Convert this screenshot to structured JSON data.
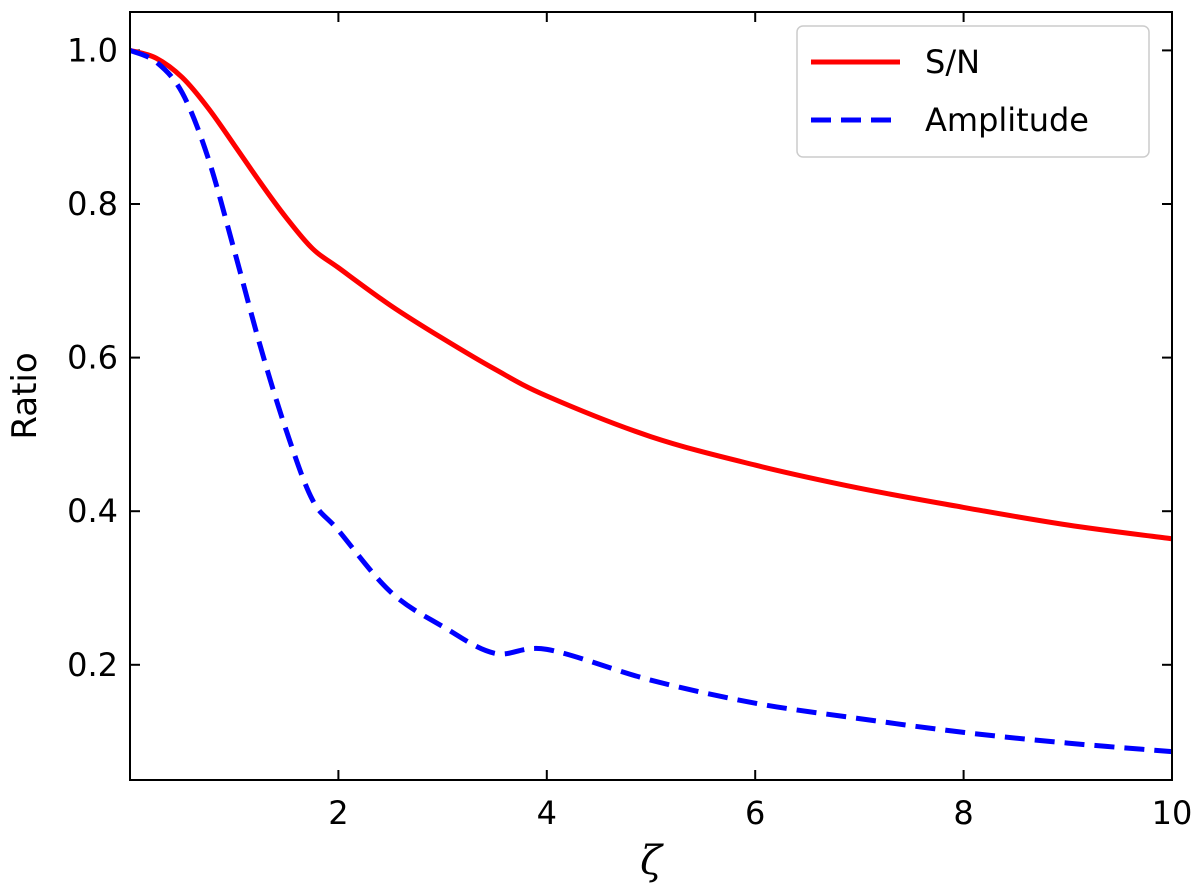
{
  "chart_data": {
    "type": "line",
    "title": "",
    "xlabel": "ζ",
    "ylabel": "Ratio",
    "xlim": [
      0,
      10
    ],
    "ylim": [
      0.05,
      1.05
    ],
    "xticks": [
      2,
      4,
      6,
      8,
      10
    ],
    "yticks": [
      0.2,
      0.4,
      0.6,
      0.8,
      1.0
    ],
    "xtick_labels": [
      "2",
      "4",
      "6",
      "8",
      "10"
    ],
    "ytick_labels": [
      "0.2",
      "0.4",
      "0.6",
      "0.8",
      "1.0"
    ],
    "grid": false,
    "legend_position": "top-right",
    "x": [
      0,
      0.25,
      0.5,
      0.75,
      1.0,
      1.25,
      1.5,
      1.75,
      2.0,
      2.5,
      3.0,
      3.5,
      4.0,
      5.0,
      6.0,
      7.0,
      8.0,
      9.0,
      10.0
    ],
    "series": [
      {
        "name": "S/N",
        "color": "#ff0000",
        "style": "solid",
        "values": [
          1.0,
          0.99,
          0.965,
          0.925,
          0.877,
          0.828,
          0.782,
          0.742,
          0.717,
          0.668,
          0.625,
          0.585,
          0.55,
          0.497,
          0.46,
          0.43,
          0.405,
          0.382,
          0.364
        ]
      },
      {
        "name": "Amplitude",
        "color": "#0000ff",
        "style": "dashed",
        "values": [
          1.0,
          0.985,
          0.945,
          0.86,
          0.74,
          0.615,
          0.505,
          0.415,
          0.375,
          0.295,
          0.25,
          0.215,
          0.22,
          0.18,
          0.15,
          0.13,
          0.112,
          0.098,
          0.087
        ]
      }
    ]
  }
}
